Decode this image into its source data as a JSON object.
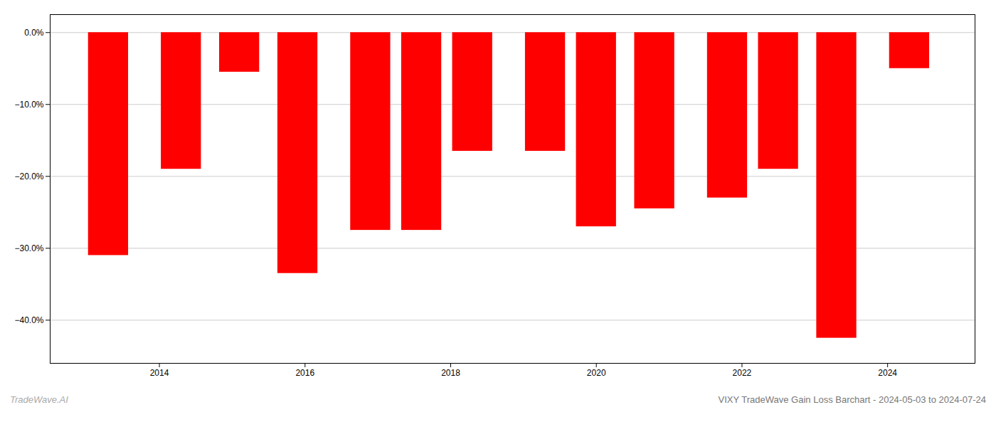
{
  "chart_data": {
    "type": "bar",
    "title": "VIXY TradeWave Gain Loss Barchart - 2024-05-03 to 2024-07-24",
    "annotations": [
      "TradeWave.AI"
    ],
    "x": [
      2013.3,
      2014.3,
      2015.1,
      2015.9,
      2016.9,
      2017.6,
      2018.3,
      2019.3,
      2020.0,
      2020.8,
      2021.8,
      2022.5,
      2023.3,
      2024.3
    ],
    "values": [
      -31.0,
      -19.0,
      -5.5,
      -33.5,
      -27.5,
      -27.5,
      -16.5,
      -16.5,
      -27.0,
      -24.5,
      -23.0,
      -19.0,
      -42.5,
      -5.0
    ],
    "color": "#ff0000",
    "xlim": [
      2012.5,
      2025.2
    ],
    "xticks": [
      2014,
      2016,
      2018,
      2020,
      2022,
      2024
    ],
    "ylim": [
      -46,
      2.5
    ],
    "yticks": [
      {
        "value": 0,
        "label": "0.0%"
      },
      {
        "value": -10,
        "label": "−10.0%"
      },
      {
        "value": -20,
        "label": "−20.0%"
      },
      {
        "value": -30,
        "label": "−30.0%"
      },
      {
        "value": -40,
        "label": "−40.0%"
      }
    ],
    "grid": true
  }
}
